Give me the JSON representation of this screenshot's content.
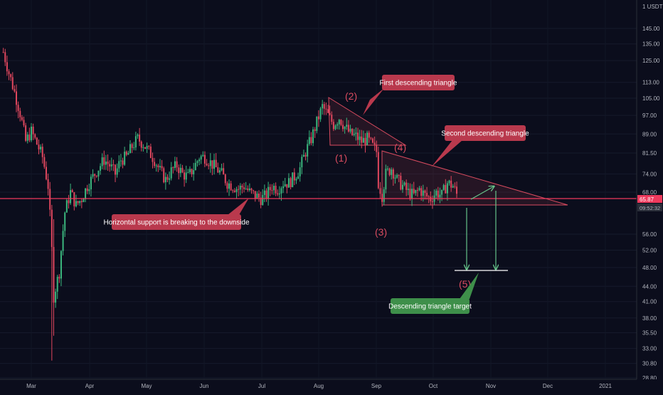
{
  "chart_data": {
    "type": "candlestick",
    "currency_label": "1 USDT",
    "y_scale": "log",
    "ylim": [
      28.8,
      178
    ],
    "y_ticks": [
      "145.00",
      "135.00",
      "125.00",
      "113.00",
      "105.00",
      "97.00",
      "89.00",
      "81.50",
      "74.00",
      "68.00",
      "56.00",
      "52.00",
      "48.00",
      "44.00",
      "41.00",
      "38.00",
      "35.50",
      "33.00",
      "30.80",
      "28.80"
    ],
    "x_ticks": [
      "Mar",
      "Apr",
      "May",
      "Jun",
      "Jul",
      "Aug",
      "Sep",
      "Oct",
      "Nov",
      "Dec",
      "2021"
    ],
    "last_price": "65.87",
    "countdown": "09:52:32",
    "support_level": 65.87,
    "annotations": {
      "callout_first": "First descending triangle",
      "callout_second": "Second descending triangle",
      "callout_support": "Horizontal support is breaking to the downside",
      "callout_target": "Descending triangle target",
      "label_1": "(1)",
      "label_2": "(2)",
      "label_3": "(3)",
      "label_4": "(4)",
      "label_5": "(5)"
    },
    "target_level": 47,
    "series": [
      {
        "date": "2020-02-15",
        "close": 130
      },
      {
        "date": "2020-02-18",
        "close": 118
      },
      {
        "date": "2020-02-21",
        "close": 108
      },
      {
        "date": "2020-02-24",
        "close": 98
      },
      {
        "date": "2020-02-27",
        "close": 86
      },
      {
        "date": "2020-03-01",
        "close": 90
      },
      {
        "date": "2020-03-04",
        "close": 85
      },
      {
        "date": "2020-03-07",
        "close": 80
      },
      {
        "date": "2020-03-10",
        "close": 70
      },
      {
        "date": "2020-03-12",
        "close": 52
      },
      {
        "date": "2020-03-13",
        "close": 42
      },
      {
        "date": "2020-03-16",
        "close": 47
      },
      {
        "date": "2020-03-19",
        "close": 62
      },
      {
        "date": "2020-03-22",
        "close": 68
      },
      {
        "date": "2020-03-25",
        "close": 64
      },
      {
        "date": "2020-03-28",
        "close": 66
      },
      {
        "date": "2020-03-31",
        "close": 70
      },
      {
        "date": "2020-04-03",
        "close": 73
      },
      {
        "date": "2020-04-06",
        "close": 76
      },
      {
        "date": "2020-04-09",
        "close": 79
      },
      {
        "date": "2020-04-12",
        "close": 77
      },
      {
        "date": "2020-04-15",
        "close": 74
      },
      {
        "date": "2020-04-18",
        "close": 79
      },
      {
        "date": "2020-04-21",
        "close": 80
      },
      {
        "date": "2020-04-24",
        "close": 84
      },
      {
        "date": "2020-04-27",
        "close": 87
      },
      {
        "date": "2020-04-30",
        "close": 85
      },
      {
        "date": "2020-05-03",
        "close": 82
      },
      {
        "date": "2020-05-06",
        "close": 79
      },
      {
        "date": "2020-05-09",
        "close": 75
      },
      {
        "date": "2020-05-12",
        "close": 72
      },
      {
        "date": "2020-05-15",
        "close": 75
      },
      {
        "date": "2020-05-18",
        "close": 77
      },
      {
        "date": "2020-05-21",
        "close": 74
      },
      {
        "date": "2020-05-24",
        "close": 73
      },
      {
        "date": "2020-05-27",
        "close": 76
      },
      {
        "date": "2020-05-30",
        "close": 80
      },
      {
        "date": "2020-06-02",
        "close": 80
      },
      {
        "date": "2020-06-05",
        "close": 78
      },
      {
        "date": "2020-06-08",
        "close": 76
      },
      {
        "date": "2020-06-11",
        "close": 74
      },
      {
        "date": "2020-06-14",
        "close": 71
      },
      {
        "date": "2020-06-17",
        "close": 70
      },
      {
        "date": "2020-06-20",
        "close": 69
      },
      {
        "date": "2020-06-23",
        "close": 70
      },
      {
        "date": "2020-06-26",
        "close": 68
      },
      {
        "date": "2020-06-29",
        "close": 67
      },
      {
        "date": "2020-07-02",
        "close": 66
      },
      {
        "date": "2020-07-05",
        "close": 67
      },
      {
        "date": "2020-07-08",
        "close": 70
      },
      {
        "date": "2020-07-11",
        "close": 69
      },
      {
        "date": "2020-07-14",
        "close": 71
      },
      {
        "date": "2020-07-17",
        "close": 71
      },
      {
        "date": "2020-07-20",
        "close": 73
      },
      {
        "date": "2020-07-23",
        "close": 76
      },
      {
        "date": "2020-07-26",
        "close": 82
      },
      {
        "date": "2020-07-29",
        "close": 87
      },
      {
        "date": "2020-08-01",
        "close": 94
      },
      {
        "date": "2020-08-04",
        "close": 101
      },
      {
        "date": "2020-08-07",
        "close": 97
      },
      {
        "date": "2020-08-10",
        "close": 93
      },
      {
        "date": "2020-08-13",
        "close": 96
      },
      {
        "date": "2020-08-16",
        "close": 92
      },
      {
        "date": "2020-08-19",
        "close": 89
      },
      {
        "date": "2020-08-22",
        "close": 88
      },
      {
        "date": "2020-08-25",
        "close": 86
      },
      {
        "date": "2020-08-28",
        "close": 87
      },
      {
        "date": "2020-08-31",
        "close": 84
      },
      {
        "date": "2020-09-02",
        "close": 82
      },
      {
        "date": "2020-09-03",
        "close": 71
      },
      {
        "date": "2020-09-05",
        "close": 67
      },
      {
        "date": "2020-09-07",
        "close": 74
      },
      {
        "date": "2020-09-10",
        "close": 76
      },
      {
        "date": "2020-09-13",
        "close": 72
      },
      {
        "date": "2020-09-16",
        "close": 70
      },
      {
        "date": "2020-09-19",
        "close": 68
      },
      {
        "date": "2020-09-22",
        "close": 67
      },
      {
        "date": "2020-09-25",
        "close": 69
      },
      {
        "date": "2020-09-28",
        "close": 67
      },
      {
        "date": "2020-10-01",
        "close": 66
      },
      {
        "date": "2020-10-04",
        "close": 68
      },
      {
        "date": "2020-10-07",
        "close": 67
      },
      {
        "date": "2020-10-10",
        "close": 71
      },
      {
        "date": "2020-10-13",
        "close": 70
      },
      {
        "date": "2020-10-16",
        "close": 66
      }
    ]
  }
}
